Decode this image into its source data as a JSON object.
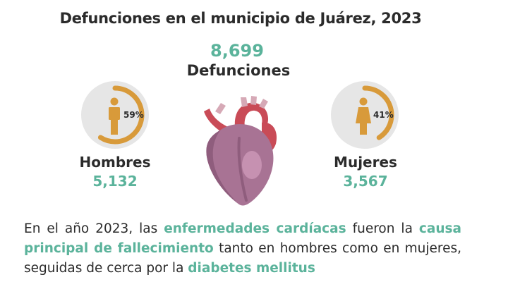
{
  "title": "Defunciones en el municipio de Juárez, 2023",
  "total": {
    "value": "8,699",
    "label": "Defunciones"
  },
  "men": {
    "label": "Hombres",
    "value": "5,132",
    "percent_text": "59%",
    "percent": 59,
    "icon": "male-person-icon"
  },
  "women": {
    "label": "Mujeres",
    "value": "3,567",
    "percent_text": "41%",
    "percent": 41,
    "icon": "female-person-icon"
  },
  "illustration": {
    "icon": "heart-icon"
  },
  "note": {
    "p1": "En el año 2023, las ",
    "h1": "enfermedades cardíacas",
    "p2": " fueron la ",
    "h2": "causa principal de fallecimiento",
    "p3": " tanto en hombres como en mujeres, seguidas de cerca por la ",
    "h3": "diabetes mellitus"
  },
  "colors": {
    "accent": "#5bb39b",
    "gauge_fill": "#d89a3a",
    "gauge_bg": "#e6e6e6",
    "text": "#2b2b2b"
  }
}
